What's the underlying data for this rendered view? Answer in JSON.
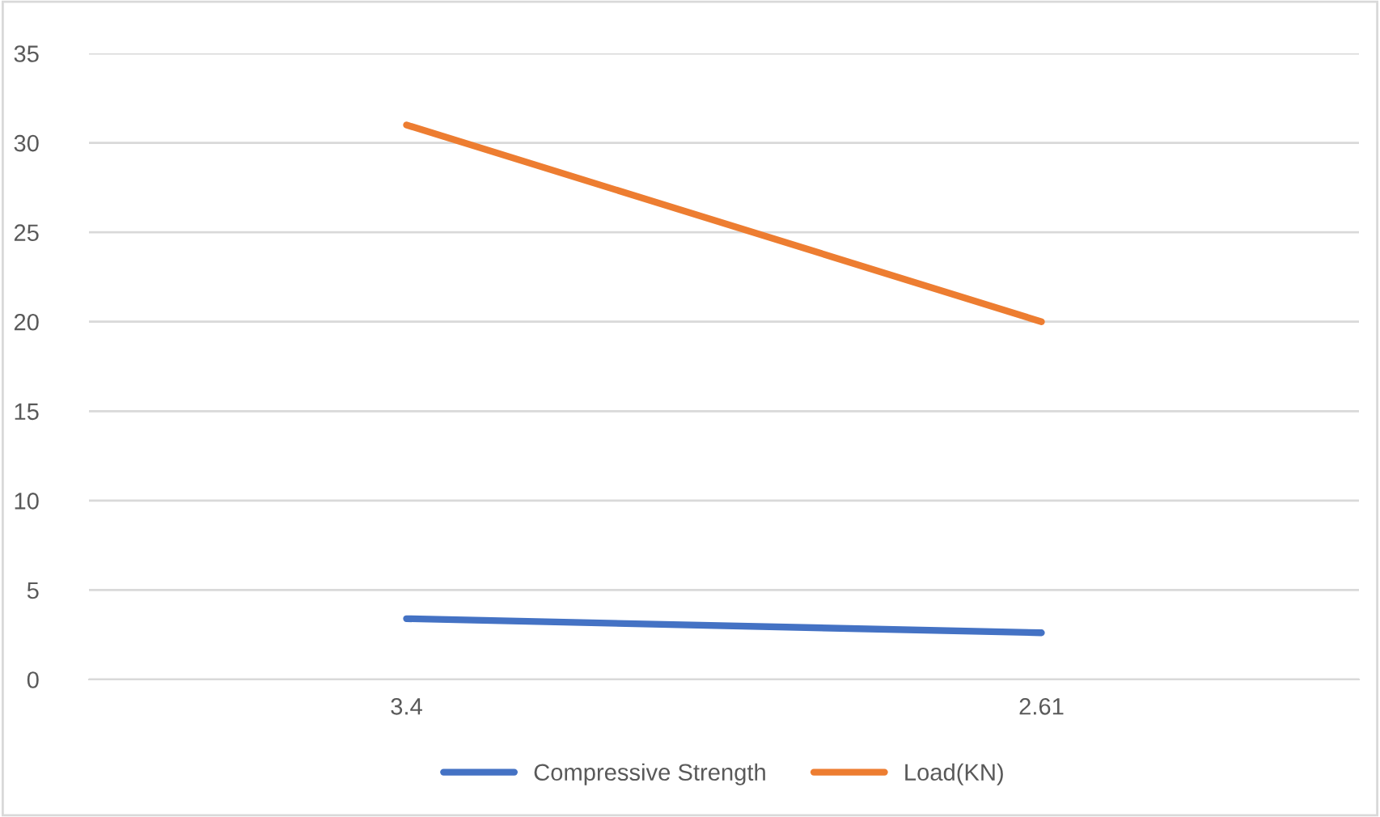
{
  "chart_data": {
    "type": "line",
    "categories": [
      "3.4",
      "2.61"
    ],
    "series": [
      {
        "name": "Compressive Strength",
        "color": "#4472c4",
        "values": [
          3.4,
          2.61
        ]
      },
      {
        "name": "Load(KN)",
        "color": "#ed7d31",
        "values": [
          31,
          20
        ]
      }
    ],
    "ylim": [
      0,
      35
    ],
    "yticks": [
      0,
      5,
      10,
      15,
      20,
      25,
      30,
      35
    ],
    "grid": "y",
    "legend": "bottom",
    "marker": "none",
    "line_style": "solid"
  }
}
